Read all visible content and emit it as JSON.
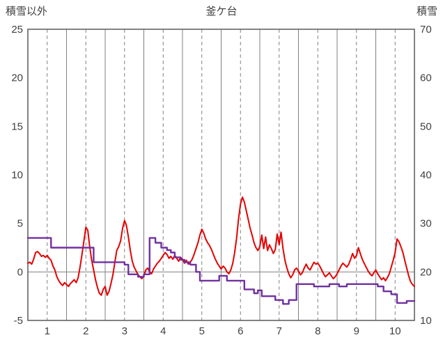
{
  "chart_data": {
    "type": "line",
    "title": "釜ケ台",
    "left_axis": {
      "label": "積雪以外",
      "min": -5,
      "max": 25,
      "ticks": [
        25,
        20,
        15,
        10,
        5,
        0,
        -5
      ]
    },
    "right_axis": {
      "label": "積雪",
      "min": 10,
      "max": 70,
      "ticks": [
        70,
        60,
        50,
        40,
        30,
        20,
        10
      ]
    },
    "x_axis": {
      "min": 0.5,
      "max": 10.5,
      "tick_labels": [
        "1",
        "2",
        "3",
        "4",
        "5",
        "6",
        "7",
        "8",
        "9",
        "10"
      ],
      "tick_positions": [
        1,
        2,
        3,
        4,
        5,
        6,
        7,
        8,
        9,
        10
      ],
      "solid_gridlines": [
        1.5,
        2.5,
        3.5,
        4.5,
        5.5,
        6.5,
        7.5,
        8.5,
        9.5
      ],
      "dashed_gridlines": [
        1,
        2,
        3,
        4,
        5,
        6,
        7,
        8,
        9,
        10
      ]
    },
    "zero_line_left": 0,
    "colors": {
      "red_series": "#e60000",
      "purple_series": "#7030a0",
      "grid": "#808080",
      "border": "#595959",
      "text": "#404040"
    },
    "series": [
      {
        "id": "series-red",
        "axis": "left",
        "color": "#e60000",
        "width": 2,
        "points": [
          [
            0.5,
            0.9
          ],
          [
            0.55,
            1.0
          ],
          [
            0.6,
            0.8
          ],
          [
            0.65,
            1.3
          ],
          [
            0.7,
            2.0
          ],
          [
            0.75,
            2.1
          ],
          [
            0.8,
            1.9
          ],
          [
            0.85,
            1.6
          ],
          [
            0.9,
            1.7
          ],
          [
            0.95,
            1.5
          ],
          [
            1.0,
            1.7
          ],
          [
            1.05,
            1.4
          ],
          [
            1.1,
            1.2
          ],
          [
            1.15,
            0.6
          ],
          [
            1.2,
            0.2
          ],
          [
            1.25,
            -0.5
          ],
          [
            1.3,
            -0.9
          ],
          [
            1.35,
            -1.2
          ],
          [
            1.4,
            -1.4
          ],
          [
            1.45,
            -1.1
          ],
          [
            1.5,
            -1.3
          ],
          [
            1.55,
            -1.5
          ],
          [
            1.6,
            -1.2
          ],
          [
            1.65,
            -1.0
          ],
          [
            1.7,
            -0.8
          ],
          [
            1.75,
            -1.1
          ],
          [
            1.8,
            -0.6
          ],
          [
            1.85,
            0.5
          ],
          [
            1.9,
            1.8
          ],
          [
            1.95,
            3.2
          ],
          [
            2.0,
            4.6
          ],
          [
            2.05,
            4.3
          ],
          [
            2.1,
            2.6
          ],
          [
            2.15,
            1.2
          ],
          [
            2.2,
            0.2
          ],
          [
            2.25,
            -0.8
          ],
          [
            2.3,
            -1.6
          ],
          [
            2.35,
            -2.2
          ],
          [
            2.4,
            -2.4
          ],
          [
            2.45,
            -1.8
          ],
          [
            2.5,
            -1.5
          ],
          [
            2.55,
            -2.4
          ],
          [
            2.6,
            -2.0
          ],
          [
            2.65,
            -1.2
          ],
          [
            2.7,
            -0.3
          ],
          [
            2.75,
            1.0
          ],
          [
            2.8,
            2.2
          ],
          [
            2.85,
            2.6
          ],
          [
            2.9,
            3.2
          ],
          [
            2.95,
            4.5
          ],
          [
            3.0,
            5.3
          ],
          [
            3.05,
            4.8
          ],
          [
            3.1,
            3.6
          ],
          [
            3.15,
            2.2
          ],
          [
            3.2,
            1.1
          ],
          [
            3.25,
            0.5
          ],
          [
            3.3,
            0.1
          ],
          [
            3.35,
            -0.3
          ],
          [
            3.4,
            -0.5
          ],
          [
            3.45,
            -0.7
          ],
          [
            3.5,
            -0.4
          ],
          [
            3.55,
            0.2
          ],
          [
            3.6,
            0.4
          ],
          [
            3.65,
            0.0
          ],
          [
            3.7,
            -0.2
          ],
          [
            3.75,
            0.3
          ],
          [
            3.8,
            0.6
          ],
          [
            3.85,
            0.9
          ],
          [
            3.9,
            1.1
          ],
          [
            3.95,
            1.4
          ],
          [
            4.0,
            1.7
          ],
          [
            4.05,
            2.0
          ],
          [
            4.1,
            1.8
          ],
          [
            4.15,
            1.4
          ],
          [
            4.2,
            1.6
          ],
          [
            4.25,
            1.3
          ],
          [
            4.3,
            1.7
          ],
          [
            4.35,
            1.4
          ],
          [
            4.4,
            1.1
          ],
          [
            4.45,
            1.5
          ],
          [
            4.5,
            1.3
          ],
          [
            4.55,
            0.9
          ],
          [
            4.6,
            1.2
          ],
          [
            4.65,
            0.8
          ],
          [
            4.7,
            1.0
          ],
          [
            4.75,
            1.3
          ],
          [
            4.8,
            1.8
          ],
          [
            4.85,
            2.4
          ],
          [
            4.9,
            3.0
          ],
          [
            4.95,
            3.8
          ],
          [
            5.0,
            4.4
          ],
          [
            5.05,
            4.0
          ],
          [
            5.1,
            3.4
          ],
          [
            5.15,
            3.0
          ],
          [
            5.2,
            2.7
          ],
          [
            5.25,
            2.3
          ],
          [
            5.3,
            1.8
          ],
          [
            5.35,
            1.3
          ],
          [
            5.4,
            0.9
          ],
          [
            5.45,
            0.6
          ],
          [
            5.5,
            0.3
          ],
          [
            5.55,
            0.6
          ],
          [
            5.6,
            0.4
          ],
          [
            5.65,
            0.0
          ],
          [
            5.7,
            -0.2
          ],
          [
            5.75,
            0.2
          ],
          [
            5.8,
            0.9
          ],
          [
            5.85,
            2.0
          ],
          [
            5.9,
            3.5
          ],
          [
            5.95,
            5.5
          ],
          [
            6.0,
            7.0
          ],
          [
            6.05,
            7.7
          ],
          [
            6.1,
            7.2
          ],
          [
            6.15,
            6.3
          ],
          [
            6.2,
            5.4
          ],
          [
            6.25,
            4.5
          ],
          [
            6.3,
            3.8
          ],
          [
            6.35,
            3.0
          ],
          [
            6.4,
            2.5
          ],
          [
            6.45,
            2.2
          ],
          [
            6.5,
            2.6
          ],
          [
            6.55,
            3.8
          ],
          [
            6.6,
            2.4
          ],
          [
            6.65,
            3.6
          ],
          [
            6.7,
            2.2
          ],
          [
            6.75,
            2.8
          ],
          [
            6.8,
            2.4
          ],
          [
            6.85,
            1.9
          ],
          [
            6.9,
            2.3
          ],
          [
            6.95,
            3.9
          ],
          [
            7.0,
            2.8
          ],
          [
            7.05,
            4.1
          ],
          [
            7.1,
            2.4
          ],
          [
            7.15,
            1.2
          ],
          [
            7.2,
            0.4
          ],
          [
            7.25,
            -0.2
          ],
          [
            7.3,
            -0.6
          ],
          [
            7.35,
            -0.3
          ],
          [
            7.4,
            0.2
          ],
          [
            7.45,
            0.4
          ],
          [
            7.5,
            0.1
          ],
          [
            7.55,
            -0.3
          ],
          [
            7.6,
            -0.1
          ],
          [
            7.65,
            0.4
          ],
          [
            7.7,
            0.8
          ],
          [
            7.75,
            0.4
          ],
          [
            7.8,
            0.2
          ],
          [
            7.85,
            0.6
          ],
          [
            7.9,
            1.0
          ],
          [
            7.95,
            0.8
          ],
          [
            8.0,
            0.9
          ],
          [
            8.05,
            0.6
          ],
          [
            8.1,
            0.2
          ],
          [
            8.15,
            -0.2
          ],
          [
            8.2,
            -0.5
          ],
          [
            8.25,
            -0.3
          ],
          [
            8.3,
            -0.1
          ],
          [
            8.35,
            -0.4
          ],
          [
            8.4,
            -0.7
          ],
          [
            8.45,
            -0.5
          ],
          [
            8.5,
            -0.2
          ],
          [
            8.55,
            0.2
          ],
          [
            8.6,
            0.6
          ],
          [
            8.65,
            0.9
          ],
          [
            8.7,
            0.7
          ],
          [
            8.75,
            0.5
          ],
          [
            8.8,
            0.8
          ],
          [
            8.85,
            1.3
          ],
          [
            8.9,
            1.9
          ],
          [
            8.95,
            1.4
          ],
          [
            9.0,
            1.7
          ],
          [
            9.05,
            2.5
          ],
          [
            9.1,
            1.9
          ],
          [
            9.15,
            1.3
          ],
          [
            9.2,
            0.9
          ],
          [
            9.25,
            0.5
          ],
          [
            9.3,
            0.1
          ],
          [
            9.35,
            -0.2
          ],
          [
            9.4,
            -0.4
          ],
          [
            9.45,
            -0.1
          ],
          [
            9.5,
            0.2
          ],
          [
            9.55,
            -0.2
          ],
          [
            9.6,
            -0.5
          ],
          [
            9.65,
            -0.8
          ],
          [
            9.7,
            -0.6
          ],
          [
            9.75,
            -0.9
          ],
          [
            9.8,
            -0.6
          ],
          [
            9.85,
            -0.2
          ],
          [
            9.9,
            0.5
          ],
          [
            9.95,
            1.2
          ],
          [
            10.0,
            2.0
          ],
          [
            10.05,
            3.4
          ],
          [
            10.1,
            3.1
          ],
          [
            10.15,
            2.6
          ],
          [
            10.2,
            2.0
          ],
          [
            10.25,
            1.2
          ],
          [
            10.3,
            0.4
          ],
          [
            10.35,
            -0.4
          ],
          [
            10.4,
            -1.0
          ],
          [
            10.45,
            -1.3
          ],
          [
            10.5,
            -1.5
          ]
        ]
      },
      {
        "id": "series-purple",
        "axis": "right",
        "color": "#7030a0",
        "width": 2.4,
        "points": [
          [
            0.5,
            27
          ],
          [
            1.1,
            27
          ],
          [
            1.1,
            25
          ],
          [
            2.2,
            25
          ],
          [
            2.2,
            22
          ],
          [
            3.0,
            22
          ],
          [
            3.0,
            21.5
          ],
          [
            3.1,
            21.5
          ],
          [
            3.1,
            19.5
          ],
          [
            3.35,
            19.5
          ],
          [
            3.35,
            19
          ],
          [
            3.5,
            19
          ],
          [
            3.5,
            19.5
          ],
          [
            3.65,
            19.5
          ],
          [
            3.65,
            27
          ],
          [
            3.8,
            27
          ],
          [
            3.8,
            26
          ],
          [
            3.95,
            26
          ],
          [
            3.95,
            25
          ],
          [
            4.1,
            25
          ],
          [
            4.1,
            24.5
          ],
          [
            4.2,
            24.5
          ],
          [
            4.2,
            24
          ],
          [
            4.3,
            24
          ],
          [
            4.3,
            23
          ],
          [
            4.45,
            23
          ],
          [
            4.45,
            22.5
          ],
          [
            4.55,
            22.5
          ],
          [
            4.55,
            22
          ],
          [
            4.7,
            22
          ],
          [
            4.7,
            21.5
          ],
          [
            4.85,
            21.5
          ],
          [
            4.85,
            20
          ],
          [
            4.95,
            20
          ],
          [
            4.95,
            18.2
          ],
          [
            5.45,
            18.2
          ],
          [
            5.45,
            19.2
          ],
          [
            5.65,
            19.2
          ],
          [
            5.65,
            18.2
          ],
          [
            6.1,
            18.2
          ],
          [
            6.1,
            16.4
          ],
          [
            6.35,
            16.4
          ],
          [
            6.35,
            15.6
          ],
          [
            6.45,
            15.6
          ],
          [
            6.45,
            16.2
          ],
          [
            6.55,
            16.2
          ],
          [
            6.55,
            15
          ],
          [
            6.9,
            15
          ],
          [
            6.9,
            14.2
          ],
          [
            7.1,
            14.2
          ],
          [
            7.1,
            13.4
          ],
          [
            7.25,
            13.4
          ],
          [
            7.25,
            14.2
          ],
          [
            7.45,
            14.2
          ],
          [
            7.45,
            17.5
          ],
          [
            7.9,
            17.5
          ],
          [
            7.9,
            17
          ],
          [
            8.3,
            17
          ],
          [
            8.3,
            17.5
          ],
          [
            8.55,
            17.5
          ],
          [
            8.55,
            17
          ],
          [
            8.75,
            17
          ],
          [
            8.75,
            17.5
          ],
          [
            9.55,
            17.5
          ],
          [
            9.55,
            17
          ],
          [
            9.7,
            17
          ],
          [
            9.7,
            16
          ],
          [
            9.9,
            16
          ],
          [
            9.9,
            15.4
          ],
          [
            10.05,
            15.4
          ],
          [
            10.05,
            13.6
          ],
          [
            10.3,
            13.6
          ],
          [
            10.3,
            14
          ],
          [
            10.5,
            14
          ]
        ]
      }
    ]
  }
}
